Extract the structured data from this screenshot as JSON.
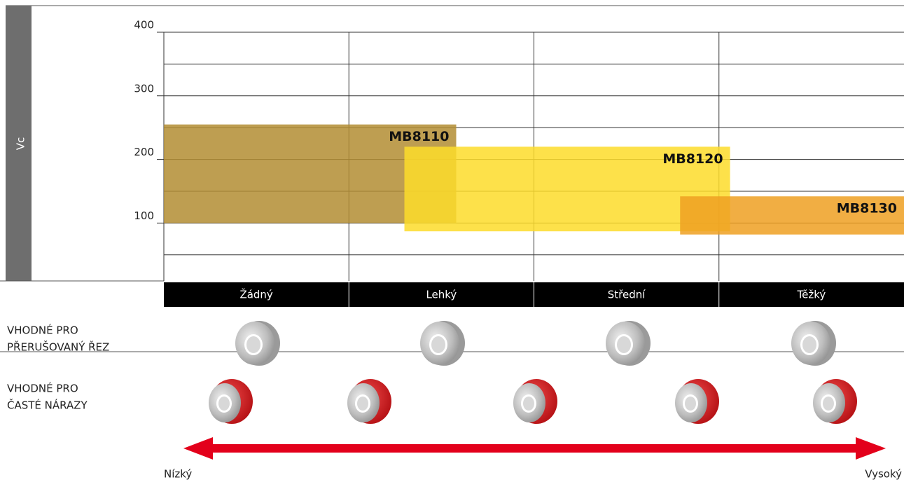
{
  "chart_data": {
    "type": "range",
    "y_label": "Vc",
    "categories": [
      "Žádný",
      "Lehký",
      "Střední",
      "Těžký"
    ],
    "ylim": [
      9,
      400
    ],
    "yticks": [
      100,
      200,
      300,
      400
    ],
    "minor_yticks": [
      50,
      150,
      250,
      350
    ],
    "grid": true,
    "series": [
      {
        "name": "MB8110",
        "color": "#b38d33",
        "x": [
          0,
          1.58
        ],
        "values": [
          100,
          255
        ]
      },
      {
        "name": "MB8120",
        "color": "#fddc2a",
        "x": [
          1.3,
          3.06
        ],
        "values": [
          87,
          220
        ]
      },
      {
        "name": "MB8130",
        "color": "#efa022",
        "x": [
          2.79,
          4
        ],
        "values": [
          82,
          142
        ]
      }
    ],
    "rows": [
      {
        "label": [
          "VHODNÉ PRO",
          "PŘERUŠOVANÝ ŘEZ"
        ]
      },
      {
        "label": [
          "VHODNÉ PRO",
          "ČASTÉ NÁRAZY"
        ]
      }
    ],
    "arrow_labels": [
      "Nízký",
      "Vysoký"
    ]
  }
}
